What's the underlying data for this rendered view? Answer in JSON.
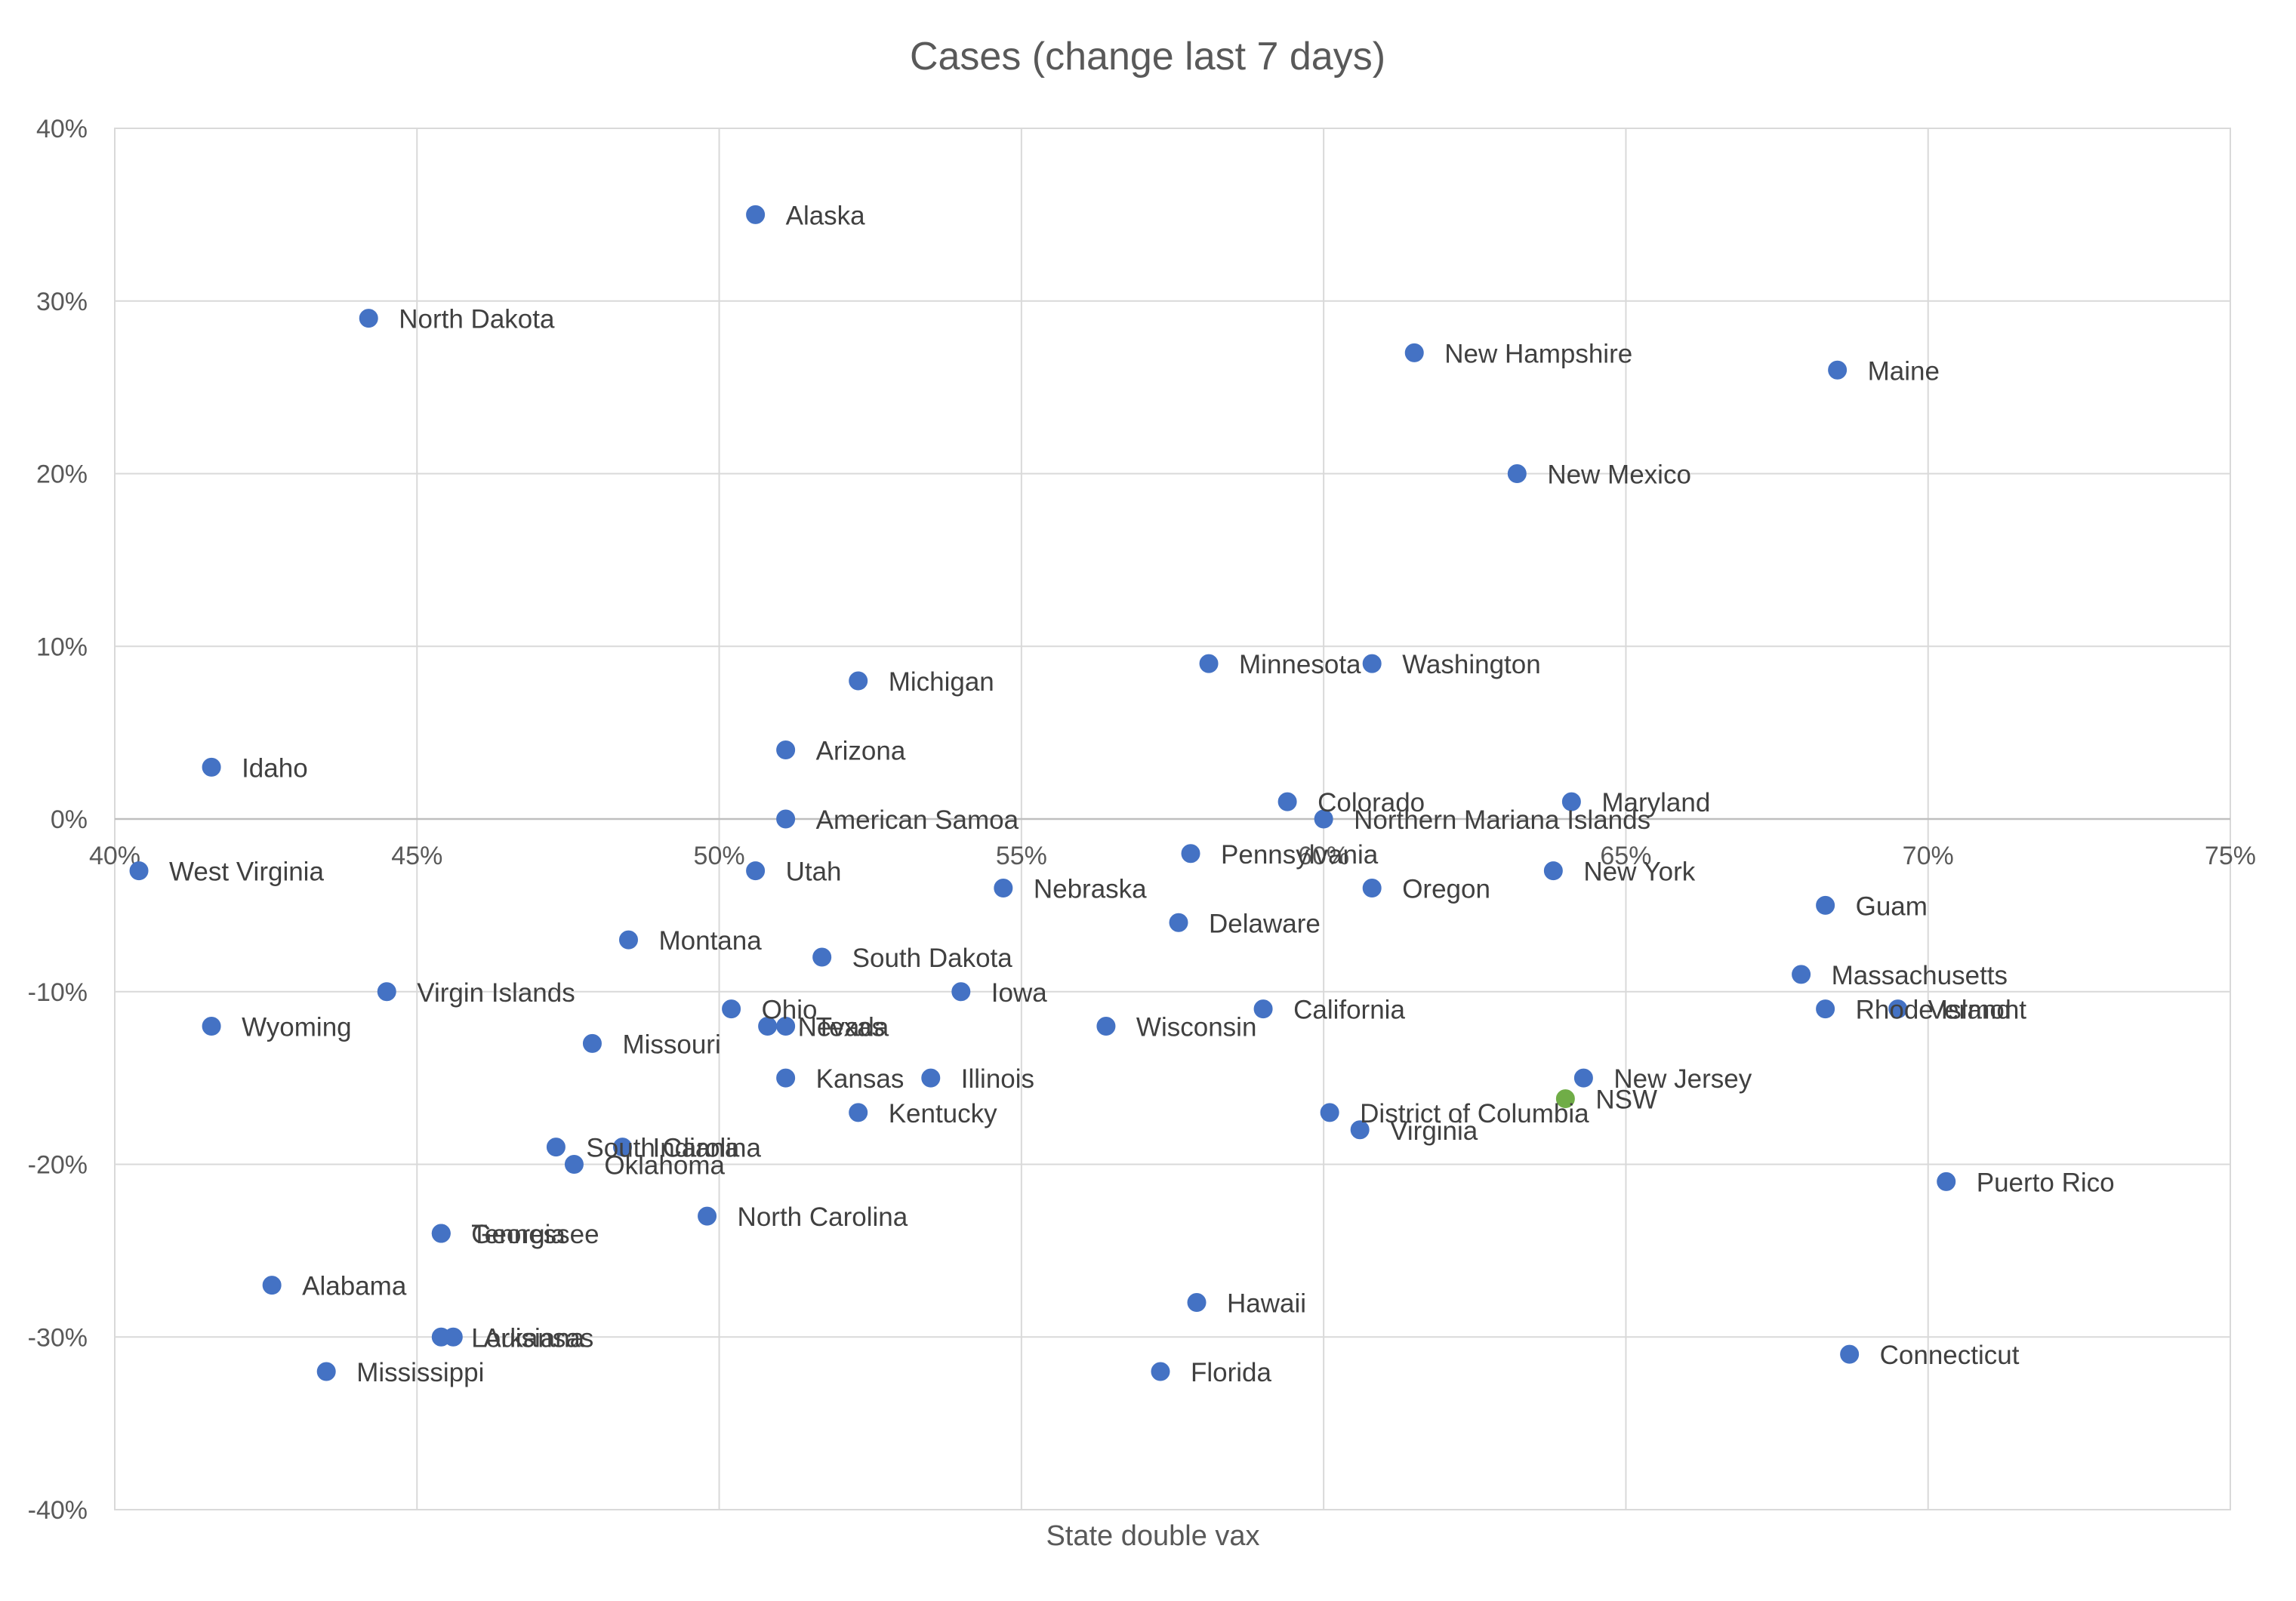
{
  "chart_data": {
    "type": "scatter",
    "title": "Cases (change last 7 days)",
    "xlabel": "State double vax",
    "ylabel": "",
    "xlim": [
      0.4,
      0.75
    ],
    "ylim": [
      -0.4,
      0.4
    ],
    "x_ticks": [
      0.4,
      0.45,
      0.5,
      0.55,
      0.6,
      0.65,
      0.7,
      0.75
    ],
    "x_tick_labels": [
      "40%",
      "45%",
      "50%",
      "55%",
      "60%",
      "65%",
      "70%",
      "75%"
    ],
    "y_ticks": [
      0.4,
      0.3,
      0.2,
      0.1,
      0.0,
      -0.1,
      -0.2,
      -0.3,
      -0.4
    ],
    "y_tick_labels": [
      "40%",
      "30%",
      "20%",
      "10%",
      "0%",
      "-10%",
      "-20%",
      "-30%",
      "-40%"
    ],
    "grid": true,
    "colors": {
      "state": "#4472c4",
      "nsw": "#70ad47"
    },
    "points": [
      {
        "label": "Alaska",
        "x": 0.506,
        "y": 0.35,
        "color": "#4472c4"
      },
      {
        "label": "North Dakota",
        "x": 0.442,
        "y": 0.29,
        "color": "#4472c4"
      },
      {
        "label": "New Hampshire",
        "x": 0.615,
        "y": 0.27,
        "color": "#4472c4"
      },
      {
        "label": "Maine",
        "x": 0.685,
        "y": 0.26,
        "color": "#4472c4"
      },
      {
        "label": "New Mexico",
        "x": 0.632,
        "y": 0.2,
        "color": "#4472c4"
      },
      {
        "label": "Minnesota",
        "x": 0.581,
        "y": 0.09,
        "color": "#4472c4"
      },
      {
        "label": "Washington",
        "x": 0.608,
        "y": 0.09,
        "color": "#4472c4"
      },
      {
        "label": "Michigan",
        "x": 0.523,
        "y": 0.08,
        "color": "#4472c4"
      },
      {
        "label": "Arizona",
        "x": 0.511,
        "y": 0.04,
        "color": "#4472c4"
      },
      {
        "label": "Idaho",
        "x": 0.416,
        "y": 0.03,
        "color": "#4472c4"
      },
      {
        "label": "Colorado",
        "x": 0.594,
        "y": 0.01,
        "color": "#4472c4"
      },
      {
        "label": "Maryland",
        "x": 0.641,
        "y": 0.01,
        "color": "#4472c4"
      },
      {
        "label": "American Samoa",
        "x": 0.511,
        "y": 0.0,
        "color": "#4472c4"
      },
      {
        "label": "Northern Mariana Islands",
        "x": 0.6,
        "y": 0.0,
        "color": "#4472c4"
      },
      {
        "label": "Pennsylvania",
        "x": 0.578,
        "y": -0.02,
        "color": "#4472c4"
      },
      {
        "label": "West Virginia",
        "x": 0.404,
        "y": -0.03,
        "color": "#4472c4"
      },
      {
        "label": "Utah",
        "x": 0.506,
        "y": -0.03,
        "color": "#4472c4"
      },
      {
        "label": "New York",
        "x": 0.638,
        "y": -0.03,
        "color": "#4472c4"
      },
      {
        "label": "Nebraska",
        "x": 0.547,
        "y": -0.04,
        "color": "#4472c4"
      },
      {
        "label": "Oregon",
        "x": 0.608,
        "y": -0.04,
        "color": "#4472c4"
      },
      {
        "label": "Guam",
        "x": 0.683,
        "y": -0.05,
        "color": "#4472c4"
      },
      {
        "label": "Delaware",
        "x": 0.576,
        "y": -0.06,
        "color": "#4472c4"
      },
      {
        "label": "Montana",
        "x": 0.485,
        "y": -0.07,
        "color": "#4472c4"
      },
      {
        "label": "South Dakota",
        "x": 0.517,
        "y": -0.08,
        "color": "#4472c4"
      },
      {
        "label": "Massachusetts",
        "x": 0.679,
        "y": -0.09,
        "color": "#4472c4"
      },
      {
        "label": "Virgin Islands",
        "x": 0.445,
        "y": -0.1,
        "color": "#4472c4"
      },
      {
        "label": "Iowa",
        "x": 0.54,
        "y": -0.1,
        "color": "#4472c4"
      },
      {
        "label": "Ohio",
        "x": 0.502,
        "y": -0.11,
        "color": "#4472c4"
      },
      {
        "label": "California",
        "x": 0.59,
        "y": -0.11,
        "color": "#4472c4"
      },
      {
        "label": "Rhode Island",
        "x": 0.683,
        "y": -0.11,
        "color": "#4472c4"
      },
      {
        "label": "Vermont",
        "x": 0.695,
        "y": -0.11,
        "color": "#4472c4"
      },
      {
        "label": "Wyoming",
        "x": 0.416,
        "y": -0.12,
        "color": "#4472c4"
      },
      {
        "label": "Nevada",
        "x": 0.508,
        "y": -0.12,
        "color": "#4472c4"
      },
      {
        "label": "Texas",
        "x": 0.511,
        "y": -0.12,
        "color": "#4472c4"
      },
      {
        "label": "Wisconsin",
        "x": 0.564,
        "y": -0.12,
        "color": "#4472c4"
      },
      {
        "label": "Missouri",
        "x": 0.479,
        "y": -0.13,
        "color": "#4472c4"
      },
      {
        "label": "Kansas",
        "x": 0.511,
        "y": -0.15,
        "color": "#4472c4"
      },
      {
        "label": "Illinois",
        "x": 0.535,
        "y": -0.15,
        "color": "#4472c4"
      },
      {
        "label": "New Jersey",
        "x": 0.643,
        "y": -0.15,
        "color": "#4472c4"
      },
      {
        "label": "NSW",
        "x": 0.64,
        "y": -0.162,
        "color": "#70ad47"
      },
      {
        "label": "Kentucky",
        "x": 0.523,
        "y": -0.17,
        "color": "#4472c4"
      },
      {
        "label": "District of Columbia",
        "x": 0.601,
        "y": -0.17,
        "color": "#4472c4"
      },
      {
        "label": "Virginia",
        "x": 0.606,
        "y": -0.18,
        "color": "#4472c4"
      },
      {
        "label": "South Carolina",
        "x": 0.473,
        "y": -0.19,
        "color": "#4472c4"
      },
      {
        "label": "Indiana",
        "x": 0.484,
        "y": -0.19,
        "color": "#4472c4"
      },
      {
        "label": "Oklahoma",
        "x": 0.476,
        "y": -0.2,
        "color": "#4472c4"
      },
      {
        "label": "Puerto Rico",
        "x": 0.703,
        "y": -0.21,
        "color": "#4472c4"
      },
      {
        "label": "North Carolina",
        "x": 0.498,
        "y": -0.23,
        "color": "#4472c4"
      },
      {
        "label": "Tennessee",
        "x": 0.454,
        "y": -0.24,
        "color": "#4472c4"
      },
      {
        "label": "Georgia",
        "x": 0.454,
        "y": -0.24,
        "color": "#4472c4"
      },
      {
        "label": "Alabama",
        "x": 0.426,
        "y": -0.27,
        "color": "#4472c4"
      },
      {
        "label": "Hawaii",
        "x": 0.579,
        "y": -0.28,
        "color": "#4472c4"
      },
      {
        "label": "Louisiana",
        "x": 0.454,
        "y": -0.3,
        "color": "#4472c4"
      },
      {
        "label": "Arkansas",
        "x": 0.456,
        "y": -0.3,
        "color": "#4472c4"
      },
      {
        "label": "Connecticut",
        "x": 0.687,
        "y": -0.31,
        "color": "#4472c4"
      },
      {
        "label": "Mississippi",
        "x": 0.435,
        "y": -0.32,
        "color": "#4472c4"
      },
      {
        "label": "Florida",
        "x": 0.573,
        "y": -0.32,
        "color": "#4472c4"
      }
    ]
  }
}
